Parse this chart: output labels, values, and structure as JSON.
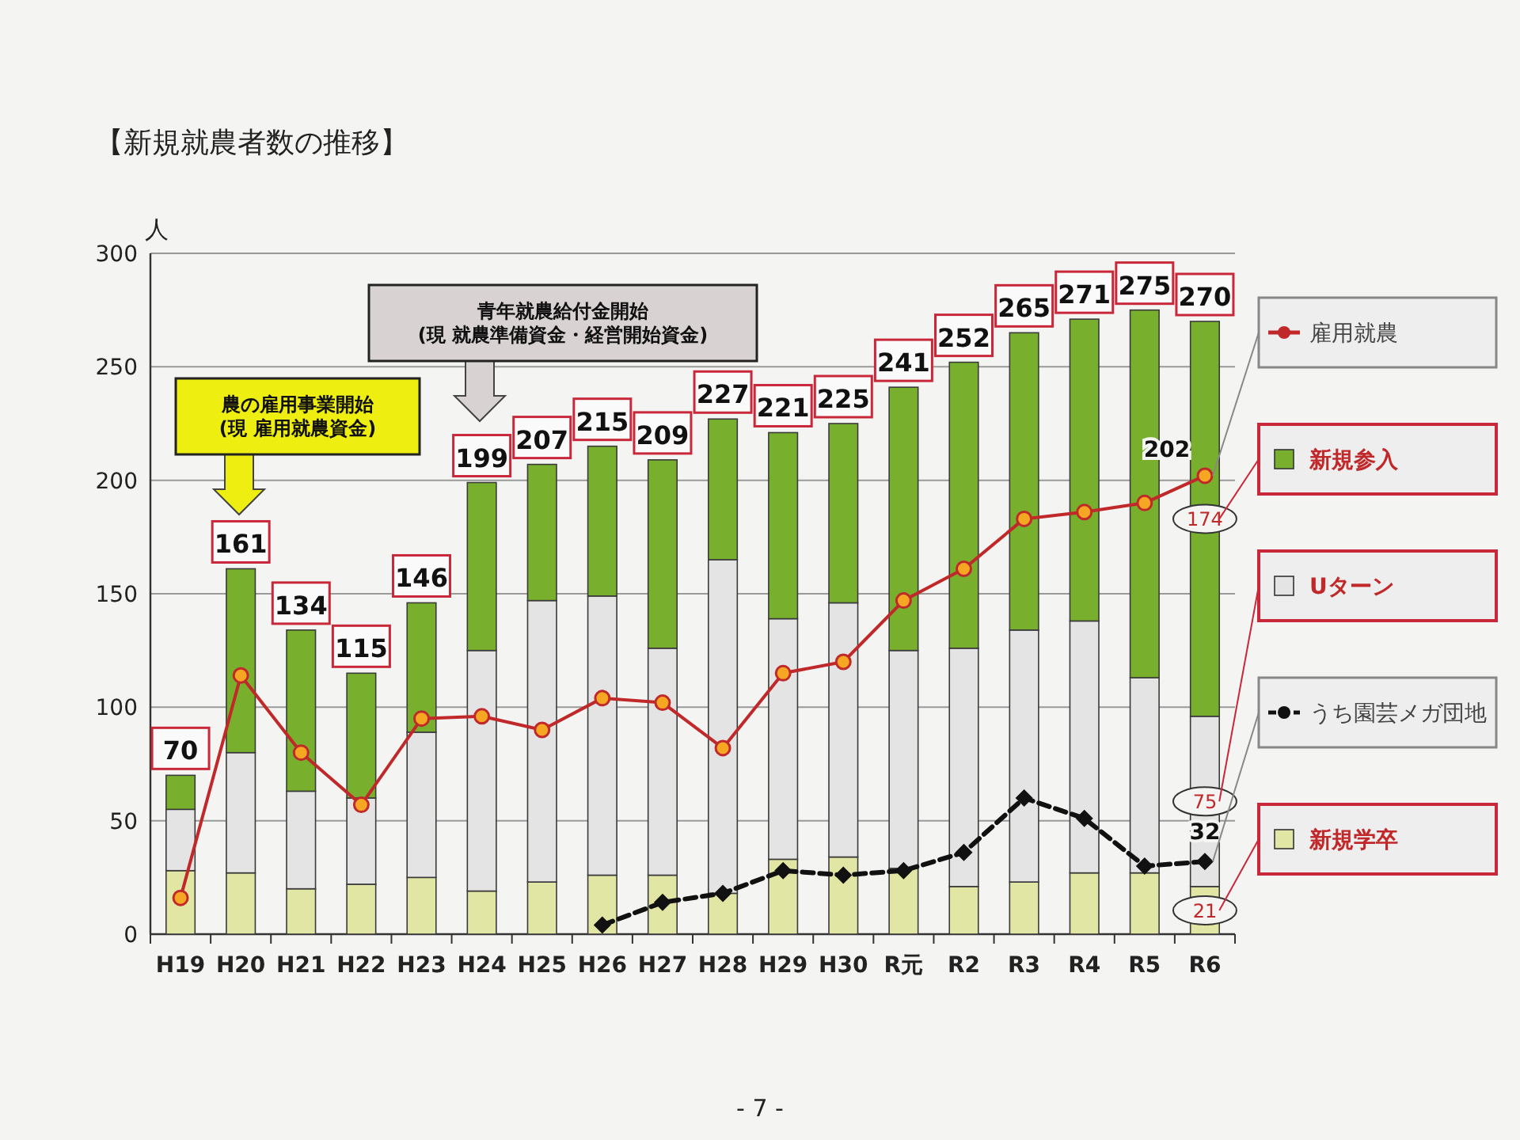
{
  "chart_data": {
    "type": "bar",
    "title": "【新規就農者数の推移】",
    "ylabel": "人",
    "categories": [
      "H19",
      "H20",
      "H21",
      "H22",
      "H23",
      "H24",
      "H25",
      "H26",
      "H27",
      "H28",
      "H29",
      "H30",
      "R元",
      "R2",
      "R3",
      "R4",
      "R5",
      "R6"
    ],
    "stacked": true,
    "legend": "right",
    "ylim": [
      0,
      300
    ],
    "yticks": [
      0,
      50,
      100,
      150,
      200,
      250,
      300
    ],
    "grid": "y",
    "series": [
      {
        "name": "新規学卒",
        "type": "bar",
        "color": "#e2e6a4",
        "values": [
          28,
          27,
          20,
          22,
          25,
          19,
          23,
          26,
          26,
          18,
          33,
          34,
          29,
          21,
          23,
          27,
          27,
          21
        ],
        "value_labels": [
          null,
          null,
          null,
          null,
          null,
          null,
          null,
          null,
          null,
          null,
          null,
          null,
          null,
          null,
          null,
          null,
          null,
          "21"
        ]
      },
      {
        "name": "Uターン",
        "type": "bar",
        "color": "#e4e4e4",
        "values": [
          27,
          53,
          43,
          38,
          64,
          106,
          124,
          123,
          100,
          147,
          106,
          112,
          96,
          105,
          111,
          111,
          86,
          75
        ],
        "value_labels": [
          null,
          null,
          null,
          null,
          null,
          null,
          null,
          null,
          null,
          null,
          null,
          null,
          null,
          null,
          null,
          null,
          null,
          "75"
        ]
      },
      {
        "name": "新規参入",
        "type": "bar",
        "color": "#78b02e",
        "values": [
          15,
          81,
          71,
          55,
          57,
          74,
          60,
          66,
          83,
          62,
          82,
          79,
          116,
          126,
          131,
          133,
          162,
          174
        ],
        "value_labels": [
          null,
          null,
          null,
          null,
          null,
          null,
          null,
          null,
          null,
          null,
          null,
          null,
          null,
          null,
          null,
          null,
          null,
          "174"
        ]
      },
      {
        "name": "雇用就農",
        "type": "line",
        "color": "#c0282a",
        "marker": "circle",
        "line_style": "solid",
        "values": [
          16,
          114,
          80,
          57,
          95,
          96,
          90,
          104,
          102,
          82,
          115,
          120,
          147,
          161,
          183,
          186,
          190,
          202
        ],
        "value_labels": [
          null,
          null,
          null,
          null,
          null,
          null,
          null,
          null,
          null,
          null,
          null,
          null,
          null,
          null,
          null,
          null,
          null,
          "202"
        ]
      },
      {
        "name": "うち園芸メガ団地",
        "type": "line",
        "color": "#111111",
        "marker": "diamond",
        "line_style": "dashed",
        "values": [
          null,
          null,
          null,
          null,
          null,
          null,
          null,
          4,
          14,
          18,
          28,
          26,
          28,
          36,
          60,
          51,
          30,
          32
        ],
        "value_labels": [
          null,
          null,
          null,
          null,
          null,
          null,
          null,
          null,
          null,
          null,
          null,
          null,
          null,
          null,
          null,
          null,
          null,
          "32"
        ]
      }
    ],
    "totals": [
      "70",
      "161",
      "134",
      "115",
      "146",
      "199",
      "207",
      "215",
      "209",
      "227",
      "221",
      "225",
      "241",
      "252",
      "265",
      "271",
      "275",
      "270"
    ],
    "annotations": [
      "農の雇用事業開始\n(現 雇用就農資金)",
      "青年就農給付金開始\n(現 就農準備資金・経営開始資金)",
      "- 7 -"
    ]
  }
}
